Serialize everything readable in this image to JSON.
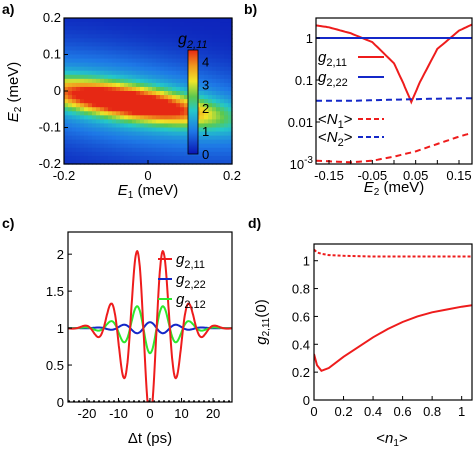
{
  "figure": {
    "panel_labels": [
      "a)",
      "b)",
      "c)",
      "d)"
    ]
  },
  "chart_data": [
    {
      "panel": "a)",
      "type": "heatmap",
      "xlabel": "E1 (meV)",
      "ylabel": "E2 (meV)",
      "x_ticks": [
        "-0.2",
        "0",
        "0.2"
      ],
      "y_ticks": [
        "0.2",
        "0.1",
        "0",
        "-0.1",
        "-0.2"
      ],
      "xlim": [
        -0.2,
        0.2
      ],
      "ylim": [
        -0.2,
        0.2
      ],
      "colorbar": {
        "label": "g2,11",
        "ticks": [
          "4",
          "3",
          "2",
          "1",
          "0"
        ],
        "range": [
          0,
          4.5
        ],
        "colors": [
          "#0a14b4",
          "#1e78e6",
          "#24c8c8",
          "#5ac850",
          "#f0e628",
          "#f0961e",
          "#e62814"
        ]
      },
      "feature": {
        "description_visible": false,
        "ridge": {
          "E1_center": -0.05,
          "E2_center": -0.03,
          "tilt": -0.18,
          "peak": 4.4
        }
      }
    },
    {
      "panel": "b)",
      "type": "line",
      "xlabel": "E2 (meV)",
      "x_ticks": [
        "-0.15",
        "-0.1",
        "-0.05",
        "0",
        "0.05",
        "0.1",
        "0.15"
      ],
      "xlim": [
        -0.18,
        0.18
      ],
      "yscale": "log",
      "ylim": [
        0.001,
        3
      ],
      "y_ticks": [
        "1",
        "0.1",
        "0.01",
        "10^-3"
      ],
      "series": [
        {
          "name": "g2,11",
          "color": "#ee1c1c",
          "style": "solid",
          "x": [
            -0.18,
            -0.15,
            -0.1,
            -0.05,
            0,
            0.02,
            0.04,
            0.06,
            0.1,
            0.15,
            0.18
          ],
          "y": [
            2.0,
            1.8,
            1.3,
            0.8,
            0.25,
            0.09,
            0.03,
            0.09,
            0.55,
            1.5,
            2.1
          ]
        },
        {
          "name": "g2,22",
          "color": "#1428c8",
          "style": "solid",
          "x": [
            -0.18,
            0.18
          ],
          "y": [
            1.0,
            1.0
          ]
        },
        {
          "name": "<N1>",
          "color": "#ee1c1c",
          "style": "dashed",
          "x": [
            -0.18,
            -0.1,
            -0.05,
            0,
            0.05,
            0.1,
            0.15,
            0.18
          ],
          "y": [
            0.0012,
            0.0011,
            0.0012,
            0.0015,
            0.002,
            0.003,
            0.0045,
            0.0055
          ]
        },
        {
          "name": "<N2>",
          "color": "#1428c8",
          "style": "dashed",
          "x": [
            -0.18,
            -0.1,
            -0.05,
            0,
            0.05,
            0.1,
            0.18
          ],
          "y": [
            0.032,
            0.032,
            0.033,
            0.034,
            0.035,
            0.036,
            0.037
          ]
        }
      ],
      "legend": {
        "placement": "left",
        "items": [
          {
            "label": "g2,11",
            "color": "#ee1c1c",
            "dashed": false
          },
          {
            "label": "g2,22",
            "color": "#1428c8",
            "dashed": false
          },
          {
            "label": "<N1>",
            "color": "#ee1c1c",
            "dashed": true
          },
          {
            "label": "<N2>",
            "color": "#1428c8",
            "dashed": true
          }
        ]
      }
    },
    {
      "panel": "c)",
      "type": "line",
      "xlabel": "Δt (ps)",
      "x_ticks": [
        "-20",
        "-10",
        "0",
        "10",
        "20"
      ],
      "xlim": [
        -26,
        26
      ],
      "ylim": [
        0,
        2.3
      ],
      "y_ticks": [
        "0",
        "0.5",
        "1",
        "1.5",
        "2"
      ],
      "series": [
        {
          "name": "g2,11",
          "color": "#ee1c1c",
          "amplitude": 1.2,
          "period_ps": 8.4,
          "decay_ps": 12
        },
        {
          "name": "g2,22",
          "color": "#1428c8",
          "amplitude": 0.08,
          "period_ps": 8.4,
          "decay_ps": 12
        },
        {
          "name": "g2,12",
          "color": "#2ee82e",
          "amplitude": -0.34,
          "period_ps": 8.4,
          "decay_ps": 12
        }
      ],
      "legend": {
        "placement": "top-right",
        "items": [
          {
            "label": "g2,11",
            "color": "#ee1c1c"
          },
          {
            "label": "g2,22",
            "color": "#1428c8"
          },
          {
            "label": "g2,12",
            "color": "#2ee82e"
          }
        ]
      }
    },
    {
      "panel": "d)",
      "type": "line",
      "xlabel": "<n1>",
      "ylabel": "g2,11(0)",
      "x_ticks": [
        "0",
        "0.2",
        "0.4",
        "0.6",
        "0.8",
        "1"
      ],
      "xlim": [
        0,
        1.07
      ],
      "ylim": [
        0,
        1.12
      ],
      "y_ticks": [
        "0",
        "0.2",
        "0.4",
        "0.6",
        "0.8",
        "1"
      ],
      "series": [
        {
          "name": "solid",
          "color": "#ee1c1c",
          "style": "solid",
          "x": [
            0.0,
            0.02,
            0.05,
            0.1,
            0.2,
            0.3,
            0.4,
            0.5,
            0.6,
            0.7,
            0.8,
            0.9,
            1.0,
            1.07
          ],
          "y": [
            0.33,
            0.25,
            0.21,
            0.23,
            0.31,
            0.38,
            0.45,
            0.51,
            0.56,
            0.6,
            0.63,
            0.65,
            0.67,
            0.68
          ]
        },
        {
          "name": "dashed",
          "color": "#ee1c1c",
          "style": "dashed",
          "x": [
            0.0,
            0.02,
            0.05,
            0.1,
            0.2,
            0.4,
            0.6,
            0.8,
            1.0,
            1.07
          ],
          "y": [
            1.08,
            1.06,
            1.05,
            1.04,
            1.035,
            1.03,
            1.03,
            1.03,
            1.03,
            1.03
          ]
        }
      ]
    }
  ]
}
